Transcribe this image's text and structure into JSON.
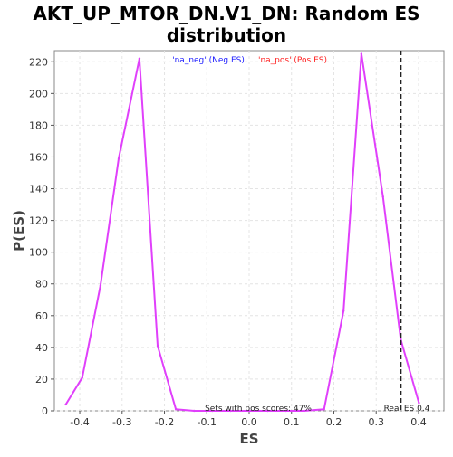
{
  "chart_data": {
    "type": "line",
    "title_line1": "AKT_UP_MTOR_DN.V1_DN: Random ES",
    "title_line2": "distribution",
    "xlabel": "ES",
    "ylabel": "P(ES)",
    "xlim": [
      -0.46,
      0.46
    ],
    "ylim": [
      0,
      227
    ],
    "xticks": [
      -0.4,
      -0.3,
      -0.2,
      -0.1,
      0.0,
      0.1,
      0.2,
      0.3,
      0.4
    ],
    "xtick_labels": [
      "-0.4",
      "-0.3",
      "-0.2",
      "-0.1",
      "0.0",
      "0.1",
      "0.2",
      "0.3",
      "0.4"
    ],
    "yticks": [
      0,
      20,
      40,
      60,
      80,
      100,
      120,
      140,
      160,
      180,
      200,
      220
    ],
    "ytick_labels": [
      "0",
      "20",
      "40",
      "60",
      "80",
      "100",
      "120",
      "140",
      "160",
      "180",
      "200",
      "220"
    ],
    "grid": true,
    "series": [
      {
        "color": "#e040fb",
        "x": [
          -0.433,
          -0.394,
          -0.351,
          -0.308,
          -0.259,
          -0.216,
          -0.173,
          -0.13,
          -0.087,
          -0.044,
          0.0,
          0.044,
          0.087,
          0.13,
          0.177,
          0.223,
          0.265,
          0.316,
          0.358,
          0.401
        ],
        "y": [
          4,
          21,
          79,
          159,
          222,
          41,
          1,
          0,
          0,
          0,
          0,
          0,
          0,
          0,
          1,
          63,
          225,
          135,
          45,
          5
        ]
      }
    ],
    "legend": {
      "position": "top-center",
      "entries": [
        {
          "label": "'na_neg' (Neg ES)",
          "color": "#1a1aff"
        },
        {
          "label": "'na_pos' (Pos ES)",
          "color": "#ff2020"
        }
      ]
    },
    "real_es": {
      "value": 0.358,
      "label": "Real ES 0.4",
      "color": "#222222"
    },
    "annotation": "Sets with pos scores: 47%"
  }
}
